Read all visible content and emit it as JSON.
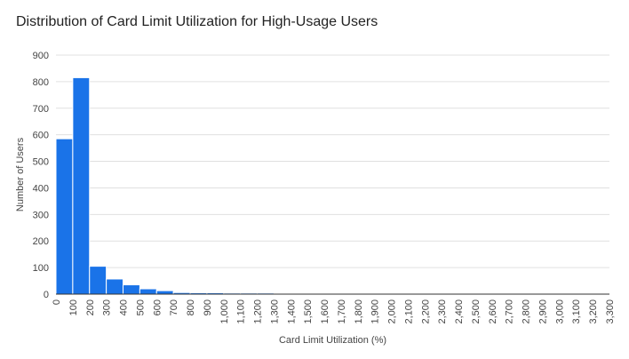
{
  "chart_data": {
    "type": "bar",
    "title": "Distribution of Card Limit Utilization for High-Usage Users",
    "xlabel": "Card Limit Utilization (%)",
    "ylabel": "Number of Users",
    "bin_width": 100,
    "xlim": [
      0,
      3300
    ],
    "ylim": [
      0,
      900
    ],
    "y_ticks": [
      0,
      100,
      200,
      300,
      400,
      500,
      600,
      700,
      800,
      900
    ],
    "x_ticks": [
      "0",
      "100",
      "200",
      "300",
      "400",
      "500",
      "600",
      "700",
      "800",
      "900",
      "1,000",
      "1,100",
      "1,200",
      "1,300",
      "1,400",
      "1,500",
      "1,600",
      "1,700",
      "1,800",
      "1,900",
      "2,000",
      "2,100",
      "2,200",
      "2,300",
      "2,400",
      "2,500",
      "2,600",
      "2,700",
      "2,800",
      "2,900",
      "3,000",
      "3,100",
      "3,200",
      "3,300"
    ],
    "bins": [
      {
        "start": 0,
        "value": 585
      },
      {
        "start": 100,
        "value": 815
      },
      {
        "start": 200,
        "value": 105
      },
      {
        "start": 300,
        "value": 57
      },
      {
        "start": 400,
        "value": 35
      },
      {
        "start": 500,
        "value": 20
      },
      {
        "start": 600,
        "value": 13
      },
      {
        "start": 700,
        "value": 6
      },
      {
        "start": 800,
        "value": 5
      },
      {
        "start": 900,
        "value": 5
      },
      {
        "start": 1000,
        "value": 4
      },
      {
        "start": 1100,
        "value": 4
      },
      {
        "start": 1200,
        "value": 4
      },
      {
        "start": 1300,
        "value": 2
      },
      {
        "start": 1400,
        "value": 2
      },
      {
        "start": 1500,
        "value": 1
      },
      {
        "start": 1600,
        "value": 1
      },
      {
        "start": 1700,
        "value": 1
      },
      {
        "start": 1800,
        "value": 1
      },
      {
        "start": 1900,
        "value": 1
      },
      {
        "start": 2000,
        "value": 1
      },
      {
        "start": 2100,
        "value": 2
      },
      {
        "start": 2200,
        "value": 1
      },
      {
        "start": 2300,
        "value": 1
      },
      {
        "start": 2400,
        "value": 2
      },
      {
        "start": 2500,
        "value": 2
      },
      {
        "start": 2600,
        "value": 2
      },
      {
        "start": 2700,
        "value": 2
      },
      {
        "start": 2800,
        "value": 1
      },
      {
        "start": 2900,
        "value": 2
      },
      {
        "start": 3000,
        "value": 2
      },
      {
        "start": 3100,
        "value": 1
      },
      {
        "start": 3200,
        "value": 1
      }
    ],
    "bar_color": "#1a73e8",
    "grid": true,
    "legend": "none"
  }
}
